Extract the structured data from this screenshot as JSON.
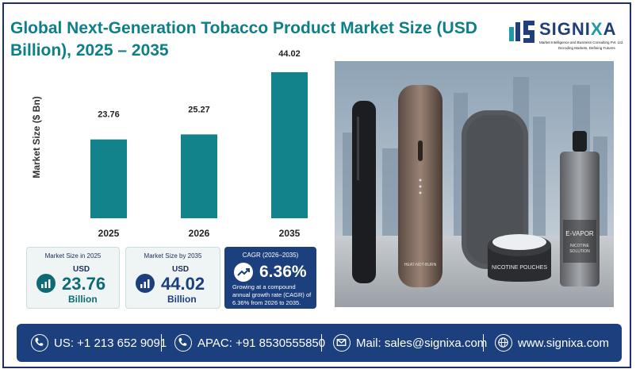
{
  "title": "Global Next-Generation Tobacco Product Market Size (USD Billion), 2025 – 2035",
  "logo": {
    "word_start": "SIGNI",
    "word_x": "X",
    "word_end": "A",
    "subtitle1": "Market Intelligence and Business Consulting Pvt. Ltd.",
    "subtitle2": "Decoding Markets, Defining Futures"
  },
  "colors": {
    "bar": "#12838b",
    "title": "#0e7f88",
    "navy": "#1c3f7d",
    "frame": "#1f2f6b"
  },
  "chart_data": {
    "type": "bar",
    "categories": [
      "2025",
      "2026",
      "2035"
    ],
    "values": [
      23.76,
      25.27,
      44.02
    ],
    "value_labels": [
      "23.76",
      "25.27",
      "44.02"
    ],
    "ylabel": "Market Size ($ Bn)",
    "ylim": [
      0,
      44.02
    ],
    "grid": false
  },
  "photo": {
    "device1_label": "HEAT-NOT-BURN",
    "pouch_label": "NICOTINE POUCHES",
    "bottle_label1": "E-VAPOR",
    "bottle_label2": "NICOTINE",
    "bottle_label3": "SOLUTION"
  },
  "cards": [
    {
      "label": "Market Size in 2025",
      "currency": "USD",
      "value": "23.76",
      "unit": "Billion"
    },
    {
      "label": "Market Size by 2035",
      "currency": "USD",
      "value": "44.02",
      "unit": "Billion"
    }
  ],
  "cagr": {
    "label": "CAGR (2026–2035)",
    "value": "6.36%",
    "desc": "Growing at a compound annual growth rate (CAGR) of 6.36% from 2026 to 2035."
  },
  "footer": {
    "us": "US: +1 213 652 9091",
    "apac": "APAC: +91 8530555850",
    "mail": "Mail: sales@signixa.com",
    "web": "www.signixa.com"
  }
}
